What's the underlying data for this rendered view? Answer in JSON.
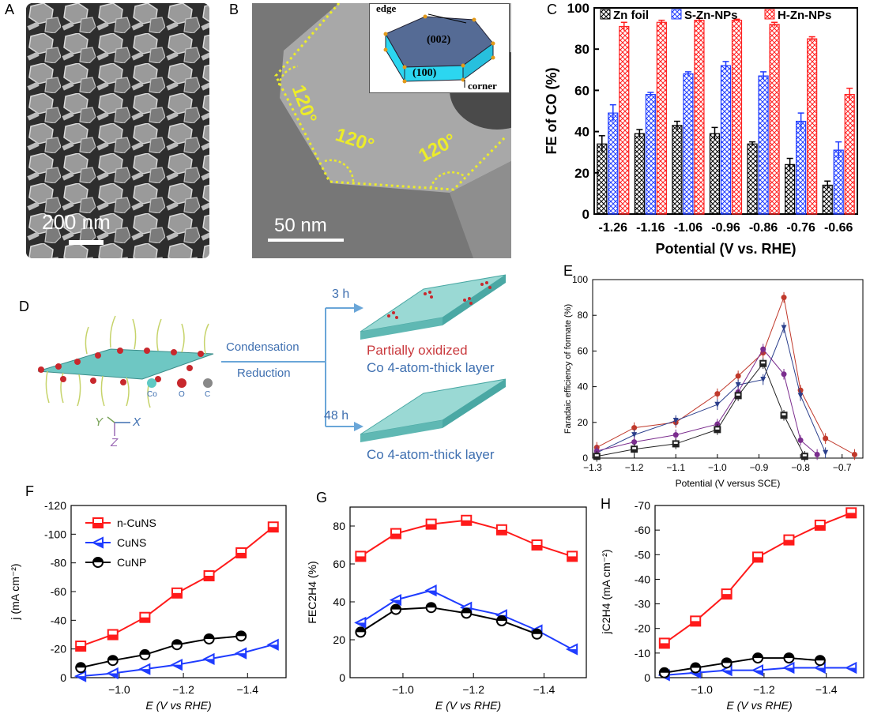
{
  "panels": {
    "A": {
      "letter": "A",
      "scale_bar": "200 nm"
    },
    "B": {
      "letter": "B",
      "scale_bar": "50 nm",
      "angles": [
        "120°",
        "120°",
        "120°"
      ],
      "inset": {
        "top_face": "(002)",
        "side_face": "(100)",
        "edge_label": "edge",
        "corner_label": "corner"
      }
    },
    "C": {
      "letter": "C"
    },
    "D": {
      "letter": "D",
      "arrow_top": "Condensation",
      "arrow_bottom": "Reduction",
      "time_1": "3 h",
      "time_2": "48 h",
      "product_1_line1": "Partially oxidized",
      "product_1_line2": "Co 4-atom-thick layer",
      "product_2": "Co 4-atom-thick layer",
      "legend_co": "Co",
      "legend_o": "O",
      "legend_c": "C",
      "axis_y": "Y",
      "axis_x": "X",
      "axis_z": "Z",
      "colors": {
        "co": "#5fc9c4",
        "o": "#c8282d",
        "c": "#888888",
        "text_blue": "#3e6fb0",
        "text_red": "#c9393d",
        "arrow": "#6aa6d8"
      }
    },
    "E": {
      "letter": "E"
    },
    "F": {
      "letter": "F"
    },
    "G": {
      "letter": "G"
    },
    "H": {
      "letter": "H"
    }
  },
  "chart_data": [
    {
      "id": "C",
      "type": "bar",
      "xlabel": "Potential (V vs. RHE)",
      "ylabel": "FE of CO (%)",
      "ylim": [
        0,
        100
      ],
      "yticks": [
        0,
        20,
        40,
        60,
        80,
        100
      ],
      "categories": [
        "-1.26",
        "-1.16",
        "-1.06",
        "-0.96",
        "-0.86",
        "-0.76",
        "-0.66"
      ],
      "legend_position": "top",
      "series": [
        {
          "name": "Zn foil",
          "color": "#000000",
          "values": [
            34,
            39,
            43,
            39,
            34,
            24,
            14
          ],
          "errors": [
            4,
            2,
            2,
            3,
            1,
            3,
            2
          ]
        },
        {
          "name": "S-Zn-NPs",
          "color": "#1f3cff",
          "values": [
            49,
            58,
            68,
            72,
            67,
            45,
            31
          ],
          "errors": [
            4,
            1,
            1,
            2,
            2,
            4,
            4
          ]
        },
        {
          "name": "H-Zn-NPs",
          "color": "#ff1f1f",
          "values": [
            91,
            93,
            94,
            94,
            92,
            85,
            58
          ],
          "errors": [
            2,
            1,
            1,
            0.5,
            1,
            1,
            3
          ]
        }
      ]
    },
    {
      "id": "E",
      "type": "line",
      "xlabel": "Potential (V versus SCE)",
      "ylabel": "Faradaic efficiency of formate (%)",
      "xlim": [
        -1.3,
        -0.65
      ],
      "ylim": [
        0,
        100
      ],
      "xticks": [
        -1.3,
        -1.2,
        -1.1,
        -1.0,
        -0.9,
        -0.8,
        -0.7
      ],
      "yticks": [
        0,
        20,
        40,
        60,
        80,
        100
      ],
      "xtick_labels": [
        "−1.3",
        "−1.2",
        "−1.1",
        "−1.0",
        "−0.9",
        "−0.8",
        "−0.7"
      ],
      "series": [
        {
          "color": "#c0392b",
          "marker": "circle",
          "x": [
            -1.29,
            -1.2,
            -1.1,
            -1.0,
            -0.95,
            -0.89,
            -0.84,
            -0.8,
            -0.74,
            -0.67
          ],
          "y": [
            6,
            17,
            20,
            36,
            46,
            59,
            90,
            38,
            11,
            2
          ]
        },
        {
          "color": "#2b3f8c",
          "marker": "triangle-down",
          "x": [
            -1.29,
            -1.2,
            -1.1,
            -1.0,
            -0.95,
            -0.89,
            -0.84,
            -0.8,
            -0.74
          ],
          "y": [
            3,
            13,
            21,
            30,
            41,
            44,
            73,
            35,
            3
          ]
        },
        {
          "color": "#7b2d8e",
          "marker": "circle",
          "x": [
            -1.29,
            -1.2,
            -1.1,
            -1.0,
            -0.95,
            -0.89,
            -0.84,
            -0.8,
            -0.76
          ],
          "y": [
            4,
            9,
            13,
            19,
            37,
            61,
            47,
            10,
            2
          ]
        },
        {
          "color": "#222222",
          "marker": "square",
          "x": [
            -1.29,
            -1.2,
            -1.1,
            -1.0,
            -0.95,
            -0.89,
            -0.84,
            -0.79
          ],
          "y": [
            1,
            5,
            8,
            16,
            35,
            53,
            24,
            1
          ]
        }
      ]
    },
    {
      "id": "F",
      "type": "line",
      "xlabel": "E (V vs RHE)",
      "ylabel": "j (mA cm⁻²)",
      "xlim": [
        -0.85,
        -1.52
      ],
      "ylim": [
        0,
        -120
      ],
      "xticks": [
        -1.0,
        -1.2,
        -1.4
      ],
      "yticks": [
        0,
        -20,
        -40,
        -60,
        -80,
        -100,
        -120
      ],
      "xtick_labels": [
        "−1.0",
        "−1.2",
        "−1.4"
      ],
      "ytick_labels": [
        "0",
        "-20",
        "-40",
        "-60",
        "-80",
        "-100",
        "-120"
      ],
      "legend_position": "top-left",
      "series": [
        {
          "name": "n-CuNS",
          "color": "#ff1a1a",
          "marker": "square",
          "x": [
            -0.88,
            -0.98,
            -1.08,
            -1.18,
            -1.28,
            -1.38,
            -1.48
          ],
          "y": [
            -22,
            -30,
            -42,
            -59,
            -71,
            -87,
            -105
          ]
        },
        {
          "name": "CuNS",
          "color": "#1f3cff",
          "marker": "triangle-left",
          "x": [
            -0.88,
            -0.98,
            -1.08,
            -1.18,
            -1.28,
            -1.38,
            -1.48
          ],
          "y": [
            -1,
            -3,
            -6,
            -9,
            -13,
            -17,
            -23
          ]
        },
        {
          "name": "CuNP",
          "color": "#000000",
          "marker": "circle-half",
          "x": [
            -0.88,
            -0.98,
            -1.08,
            -1.18,
            -1.28,
            -1.38
          ],
          "y": [
            -7,
            -12,
            -16,
            -23,
            -27,
            -29
          ]
        }
      ]
    },
    {
      "id": "G",
      "type": "line",
      "xlabel": "E (V vs RHE)",
      "ylabel": "FEC2H4 (%)",
      "xlim": [
        -0.85,
        -1.52
      ],
      "ylim": [
        0,
        90
      ],
      "xticks": [
        -1.0,
        -1.2,
        -1.4
      ],
      "yticks": [
        0,
        20,
        40,
        60,
        80
      ],
      "xtick_labels": [
        "−1.0",
        "−1.2",
        "−1.4"
      ],
      "series": [
        {
          "color": "#ff1a1a",
          "marker": "square",
          "x": [
            -0.88,
            -0.98,
            -1.08,
            -1.18,
            -1.28,
            -1.38,
            -1.48
          ],
          "y": [
            64,
            76,
            81,
            83,
            78,
            70,
            64
          ]
        },
        {
          "color": "#1f3cff",
          "marker": "triangle-left",
          "x": [
            -0.88,
            -0.98,
            -1.08,
            -1.18,
            -1.28,
            -1.38,
            -1.48
          ],
          "y": [
            29,
            41,
            46,
            37,
            33,
            25,
            15
          ]
        },
        {
          "color": "#000000",
          "marker": "circle-half",
          "x": [
            -0.88,
            -0.98,
            -1.08,
            -1.18,
            -1.28,
            -1.38
          ],
          "y": [
            24,
            36,
            37,
            34,
            30,
            23
          ]
        }
      ]
    },
    {
      "id": "H",
      "type": "line",
      "xlabel": "E (V vs RHE)",
      "ylabel": "jC2H4 (mA cm⁻²)",
      "xlim": [
        -0.85,
        -1.52
      ],
      "ylim": [
        0,
        -70
      ],
      "xticks": [
        -1.0,
        -1.2,
        -1.4
      ],
      "yticks": [
        0,
        -10,
        -20,
        -30,
        -40,
        -50,
        -60,
        -70
      ],
      "xtick_labels": [
        "−1.0",
        "−1.2",
        "−1.4"
      ],
      "ytick_labels": [
        "0",
        "-10",
        "-20",
        "-30",
        "-40",
        "-50",
        "-60",
        "-70"
      ],
      "series": [
        {
          "color": "#ff1a1a",
          "marker": "square",
          "x": [
            -0.88,
            -0.98,
            -1.08,
            -1.18,
            -1.28,
            -1.38,
            -1.48
          ],
          "y": [
            -14,
            -23,
            -34,
            -49,
            -56,
            -62,
            -67
          ]
        },
        {
          "color": "#1f3cff",
          "marker": "triangle-left",
          "x": [
            -0.88,
            -0.98,
            -1.08,
            -1.18,
            -1.28,
            -1.38,
            -1.48
          ],
          "y": [
            -1,
            -2,
            -3,
            -3,
            -4,
            -4,
            -4
          ]
        },
        {
          "color": "#000000",
          "marker": "circle-half",
          "x": [
            -0.88,
            -0.98,
            -1.08,
            -1.18,
            -1.28,
            -1.38
          ],
          "y": [
            -2,
            -4,
            -6,
            -8,
            -8,
            -7
          ]
        }
      ]
    }
  ]
}
